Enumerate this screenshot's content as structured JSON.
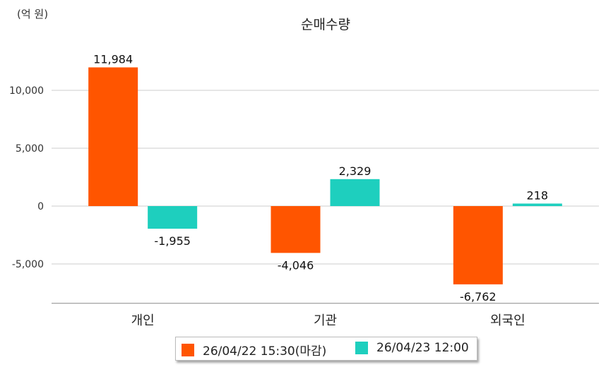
{
  "chart_data": {
    "type": "bar",
    "title": "순매수량",
    "unit_label": "(억 원)",
    "categories": [
      "개인",
      "기관",
      "외국인"
    ],
    "series": [
      {
        "name": "26/04/22 15:30(마감)",
        "values": [
          11984,
          -4046,
          -6762
        ],
        "value_labels": [
          "11,984",
          "-4,046",
          "-6,762"
        ],
        "color": "#ff5500"
      },
      {
        "name": "26/04/23 12:00",
        "values": [
          -1955,
          2329,
          218
        ],
        "value_labels": [
          "-1,955",
          "2,329",
          "218"
        ],
        "color": "#1ecfbe"
      }
    ],
    "ylim": [
      -8400,
      13000
    ],
    "yticks": [
      10000,
      5000,
      0,
      -5000
    ],
    "ytick_labels": [
      "10,000",
      "5,000",
      "0",
      "-5,000"
    ],
    "grid": true,
    "legend_position": "bottom"
  }
}
